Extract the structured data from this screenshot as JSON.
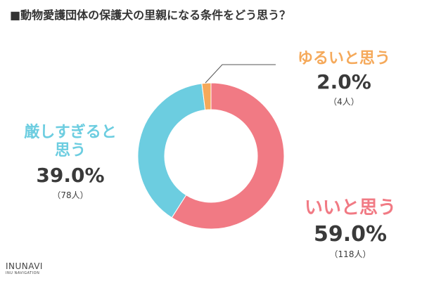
{
  "title": "■動物愛護団体の保護犬の里親になる条件をどう思う？",
  "chart_data": {
    "type": "pie",
    "donut": true,
    "slices": [
      {
        "label": "いいと思う",
        "percent": 59.0,
        "percent_label": "59.0%",
        "count_label": "（118人）",
        "color": "#f17a84"
      },
      {
        "label": "厳しすぎると思う",
        "label_line1": "厳しすぎると",
        "label_line2": "思う",
        "percent": 39.0,
        "percent_label": "39.0%",
        "count_label": "（78人）",
        "color": "#6ccde0"
      },
      {
        "label": "ゆるいと思う",
        "percent": 2.0,
        "percent_label": "2.0%",
        "count_label": "（4人）",
        "color": "#f5a95a"
      }
    ]
  },
  "brand": {
    "line1": "INUNAVI",
    "line2": "INU NAVIGATION"
  }
}
